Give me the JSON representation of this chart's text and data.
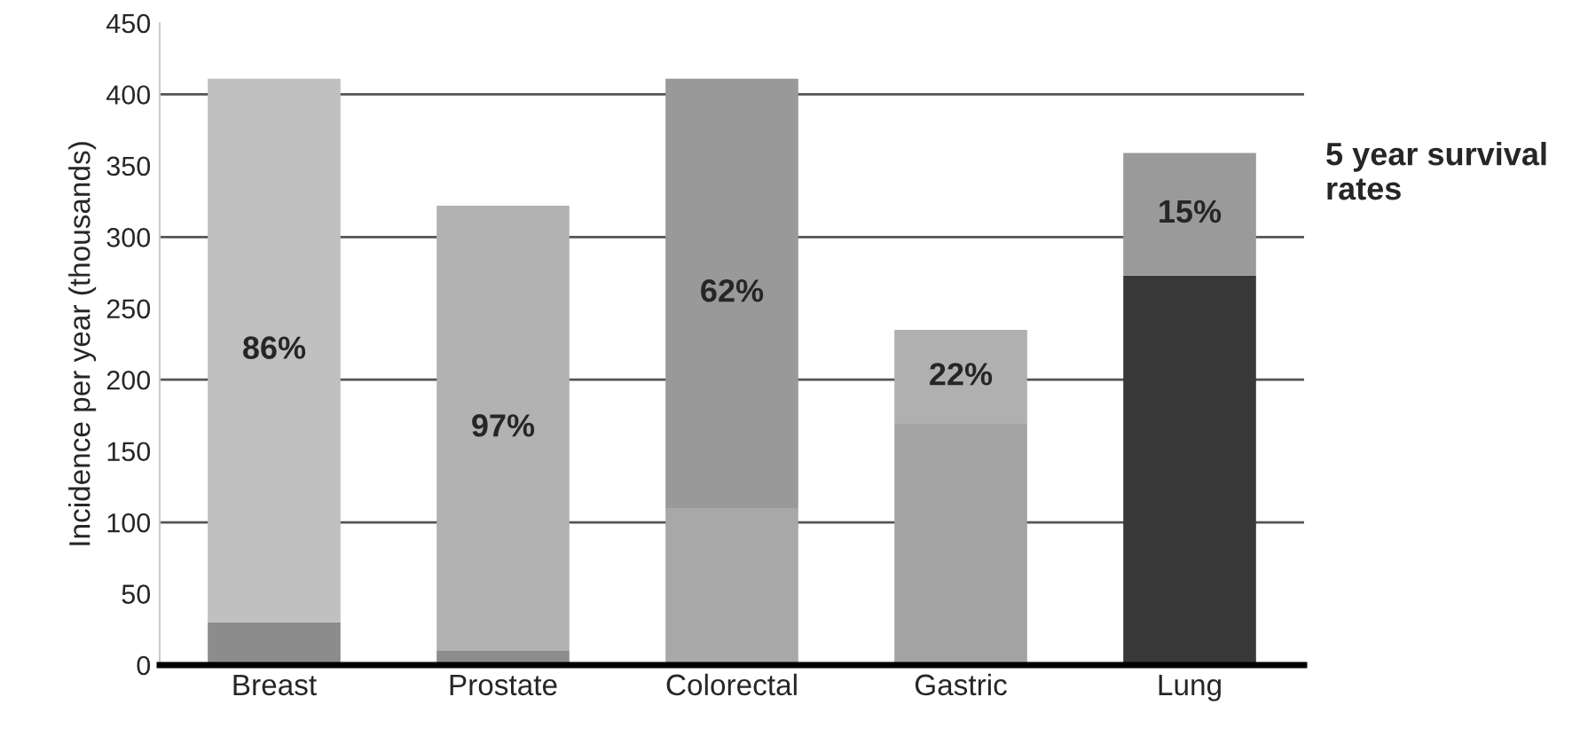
{
  "chart_data": {
    "type": "bar",
    "stacked": true,
    "ylabel": "Incidence per year (thousands)",
    "categories": [
      "Breast",
      "Prostate",
      "Colorectal",
      "Gastric",
      "Lung"
    ],
    "series": [
      {
        "colors": [
          "#8c8c8c",
          "#8c8c8c",
          "#a8a8a8",
          "#a3a3a3",
          "#383838"
        ],
        "values": [
          30,
          10,
          110,
          169,
          273
        ]
      },
      {
        "colors": [
          "#c0c0c0",
          "#b2b2b2",
          "#999999",
          "#b0b0b0",
          "#9a9a9a"
        ],
        "values": [
          381,
          312,
          301,
          66,
          86
        ]
      }
    ],
    "ylim": [
      0,
      450
    ],
    "yticks": [
      0,
      50,
      100,
      150,
      200,
      250,
      300,
      350,
      400,
      450
    ],
    "ref_lines": [
      {
        "axis": "y",
        "value": 100,
        "color": "#555555"
      },
      {
        "axis": "y",
        "value": 200,
        "color": "#555555"
      },
      {
        "axis": "y",
        "value": 300,
        "color": "#555555"
      },
      {
        "axis": "y",
        "value": 400,
        "color": "#555555"
      }
    ],
    "annotations": [
      "86%",
      "97%",
      "62%",
      "22%",
      "15%",
      "5 year survival\nrates"
    ],
    "grid": false,
    "legend": false
  }
}
